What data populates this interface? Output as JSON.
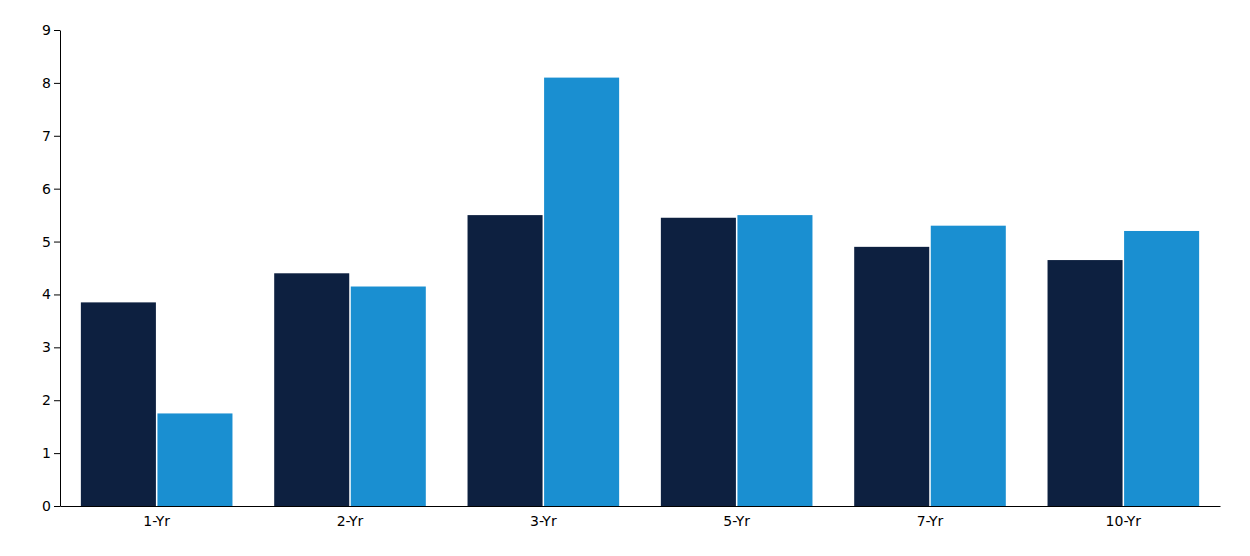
{
  "chart_data": {
    "type": "bar",
    "categories": [
      "1-Yr",
      "2-Yr",
      "3-Yr",
      "5-Yr",
      "7-Yr",
      "10-Yr"
    ],
    "series": [
      {
        "color": "#0d2040",
        "values": [
          3.85,
          4.4,
          5.5,
          5.45,
          4.9,
          4.65
        ]
      },
      {
        "color": "#1a8fd1",
        "values": [
          1.75,
          4.15,
          8.1,
          5.5,
          5.3,
          5.2
        ]
      }
    ],
    "ylim": [
      0,
      9
    ],
    "yticks": [
      0,
      1,
      2,
      3,
      4,
      5,
      6,
      7,
      8,
      9
    ],
    "grid": false
  }
}
